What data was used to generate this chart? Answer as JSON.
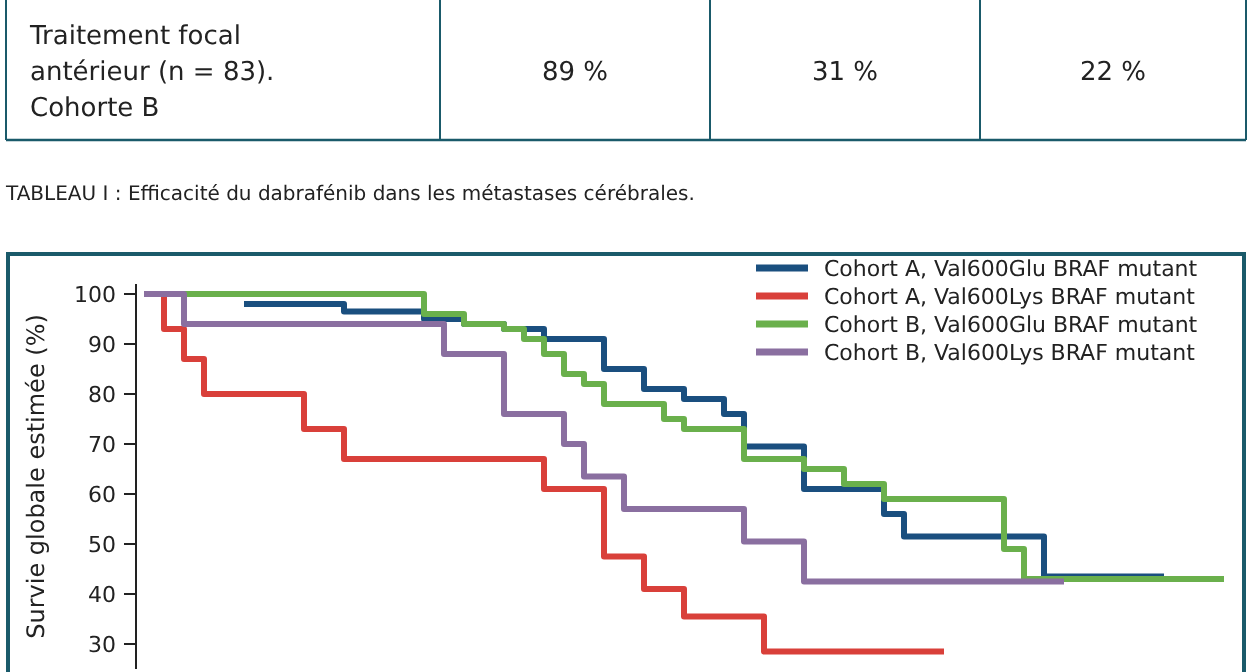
{
  "chart_data": {
    "type": "step",
    "ylabel": "Survie globale estimée (%)",
    "annotations": [
      "Traitement focal antérieur (n = 83). Cohorte B",
      "89 %",
      "31 %",
      "22 %",
      "TABLEAU I : Efficacité du dabrafénib dans les métastases cérébrales."
    ],
    "categories": [
      null,
      null,
      null,
      null,
      null,
      null,
      null,
      null,
      null,
      null,
      null,
      null,
      null,
      null,
      null,
      null,
      null,
      null,
      null,
      null,
      null,
      null,
      null,
      null,
      null,
      null,
      null,
      null,
      null,
      null,
      null,
      null,
      null,
      null,
      null,
      null,
      null,
      null,
      null,
      null,
      null,
      null,
      null,
      null,
      null,
      null,
      null,
      null,
      null,
      null,
      null,
      null,
      null,
      null,
      null
    ],
    "series": [
      {
        "name": "Cohort A, Val600Glu BRAF mutant",
        "color": "#1a4f7f",
        "values": [
          null,
          null,
          null,
          null,
          null,
          98,
          98,
          98,
          98,
          98,
          96.5,
          96.5,
          96.5,
          96.5,
          95,
          95,
          94,
          94,
          93,
          93,
          91,
          91,
          91,
          85,
          85,
          81,
          81,
          79,
          79,
          76,
          69.5,
          69.5,
          69.5,
          61,
          61,
          61,
          61,
          56,
          51.5,
          51.5,
          51.5,
          51.5,
          51.5,
          51.5,
          51.5,
          43.5,
          43.5,
          43.5,
          43.5,
          43.5,
          43.5,
          43.5,
          null,
          null,
          null
        ]
      },
      {
        "name": "Cohort A, Val600Lys BRAF mutant",
        "color": "#d9403a",
        "values": [
          100,
          93,
          87,
          80,
          80,
          80,
          80,
          80,
          73,
          73,
          67,
          67,
          67,
          67,
          67,
          67,
          67,
          67,
          67,
          67,
          61,
          61,
          61,
          47.5,
          47.5,
          41,
          41,
          35.5,
          35.5,
          35.5,
          35.5,
          28.5,
          28.5,
          28.5,
          28.5,
          28.5,
          28.5,
          28.5,
          28.5,
          28.5,
          28.5,
          null,
          null,
          null,
          null,
          null,
          null,
          null,
          null,
          null,
          null,
          null,
          null,
          null,
          null
        ]
      },
      {
        "name": "Cohort B, Val600Glu BRAF mutant",
        "color": "#6ab04c",
        "values": [
          100,
          100,
          100,
          100,
          100,
          100,
          100,
          100,
          100,
          100,
          100,
          100,
          100,
          100,
          96,
          96,
          94,
          94,
          93,
          91,
          88,
          84,
          82,
          78,
          78,
          78,
          75,
          73,
          73,
          73,
          67,
          67,
          67,
          65,
          65,
          62,
          62,
          59,
          59,
          59,
          59,
          59,
          59,
          49,
          43,
          43,
          43,
          43,
          43,
          43,
          43,
          43,
          43,
          43,
          43
        ]
      },
      {
        "name": "Cohort B, Val600Lys BRAF mutant",
        "color": "#8a6fa0",
        "values": [
          100,
          100,
          94,
          94,
          94,
          94,
          94,
          94,
          94,
          94,
          94,
          94,
          94,
          94,
          94,
          88,
          88,
          88,
          76,
          76,
          76,
          70,
          63.5,
          63.5,
          57,
          57,
          57,
          57,
          57,
          57,
          50.5,
          50.5,
          50.5,
          42.5,
          42.5,
          42.5,
          42.5,
          42.5,
          42.5,
          42.5,
          42.5,
          42.5,
          42.5,
          42.5,
          42.5,
          42.5,
          42.5,
          null,
          null,
          null,
          null,
          null,
          null,
          null,
          null
        ]
      }
    ],
    "ylim": [
      25,
      102
    ],
    "yticks": [
      30,
      40,
      50,
      60,
      70,
      80,
      90,
      100
    ],
    "legend": "top right"
  }
}
